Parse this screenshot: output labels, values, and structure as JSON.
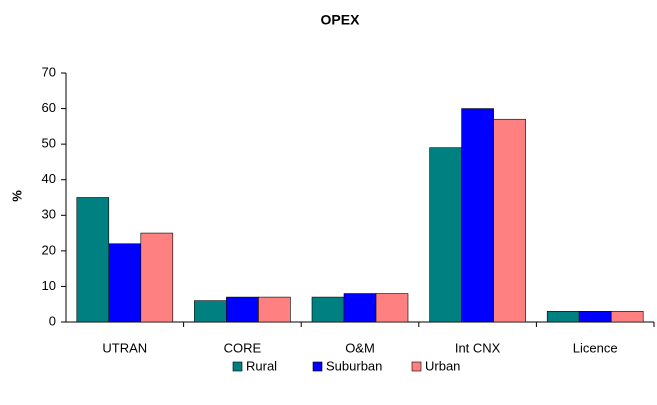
{
  "chart_data": {
    "type": "bar",
    "title": "OPEX",
    "y_label": "%",
    "categories": [
      "UTRAN",
      "CORE",
      "O&M",
      "Int CNX",
      "Licence"
    ],
    "series": [
      {
        "name": "Rural",
        "color": "#008080",
        "values": [
          35,
          6,
          7,
          49,
          3
        ]
      },
      {
        "name": "Suburban",
        "color": "#0000ff",
        "values": [
          22,
          7,
          8,
          60,
          3
        ]
      },
      {
        "name": "Urban",
        "color": "#ff8080",
        "values": [
          25,
          7,
          8,
          57,
          3
        ]
      }
    ],
    "ylim": [
      0,
      70
    ],
    "yticks": [
      0,
      10,
      20,
      30,
      40,
      50,
      60,
      70
    ],
    "grid": false,
    "legend": "bottom"
  }
}
